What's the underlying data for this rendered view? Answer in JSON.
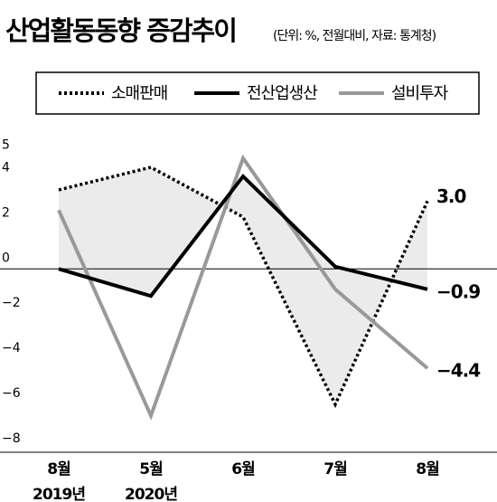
{
  "chart_data": {
    "type": "line",
    "title": "산업활동동향 증감추이",
    "subtitle": "(단위: %, 전월대비, 자료: 통계청)",
    "categories": [
      "8월\n2019년",
      "5월\n2020년",
      "6월",
      "7월",
      "8월"
    ],
    "series": [
      {
        "name": "소매판매",
        "color": "#000000",
        "style": "dotted",
        "values": [
          3.5,
          4.5,
          2.3,
          -6.0,
          3.0
        ],
        "value_labels": [
          null,
          null,
          null,
          null,
          "3.0"
        ]
      },
      {
        "name": "전산업생산",
        "color": "#000000",
        "style": "solid",
        "values": [
          0,
          -1.2,
          4.1,
          0.1,
          -0.9
        ],
        "value_labels": [
          null,
          null,
          null,
          null,
          "−0.9"
        ]
      },
      {
        "name": "설비투자",
        "color": "#999999",
        "style": "solid",
        "values": [
          2.6,
          -6.5,
          4.9,
          -0.9,
          -4.4
        ],
        "value_labels": [
          null,
          null,
          null,
          null,
          "−4.4"
        ]
      }
    ],
    "ylim": [
      -8,
      5.5
    ],
    "yticks": [
      5,
      4,
      2,
      0,
      {
        "value": -2,
        "label": "−2"
      },
      {
        "value": -4,
        "label": "−4"
      },
      {
        "value": -6,
        "label": "−6"
      },
      {
        "value": -8,
        "label": "−8"
      }
    ],
    "shade_between": [
      0,
      1
    ],
    "shade_color": "#ebebeb"
  }
}
